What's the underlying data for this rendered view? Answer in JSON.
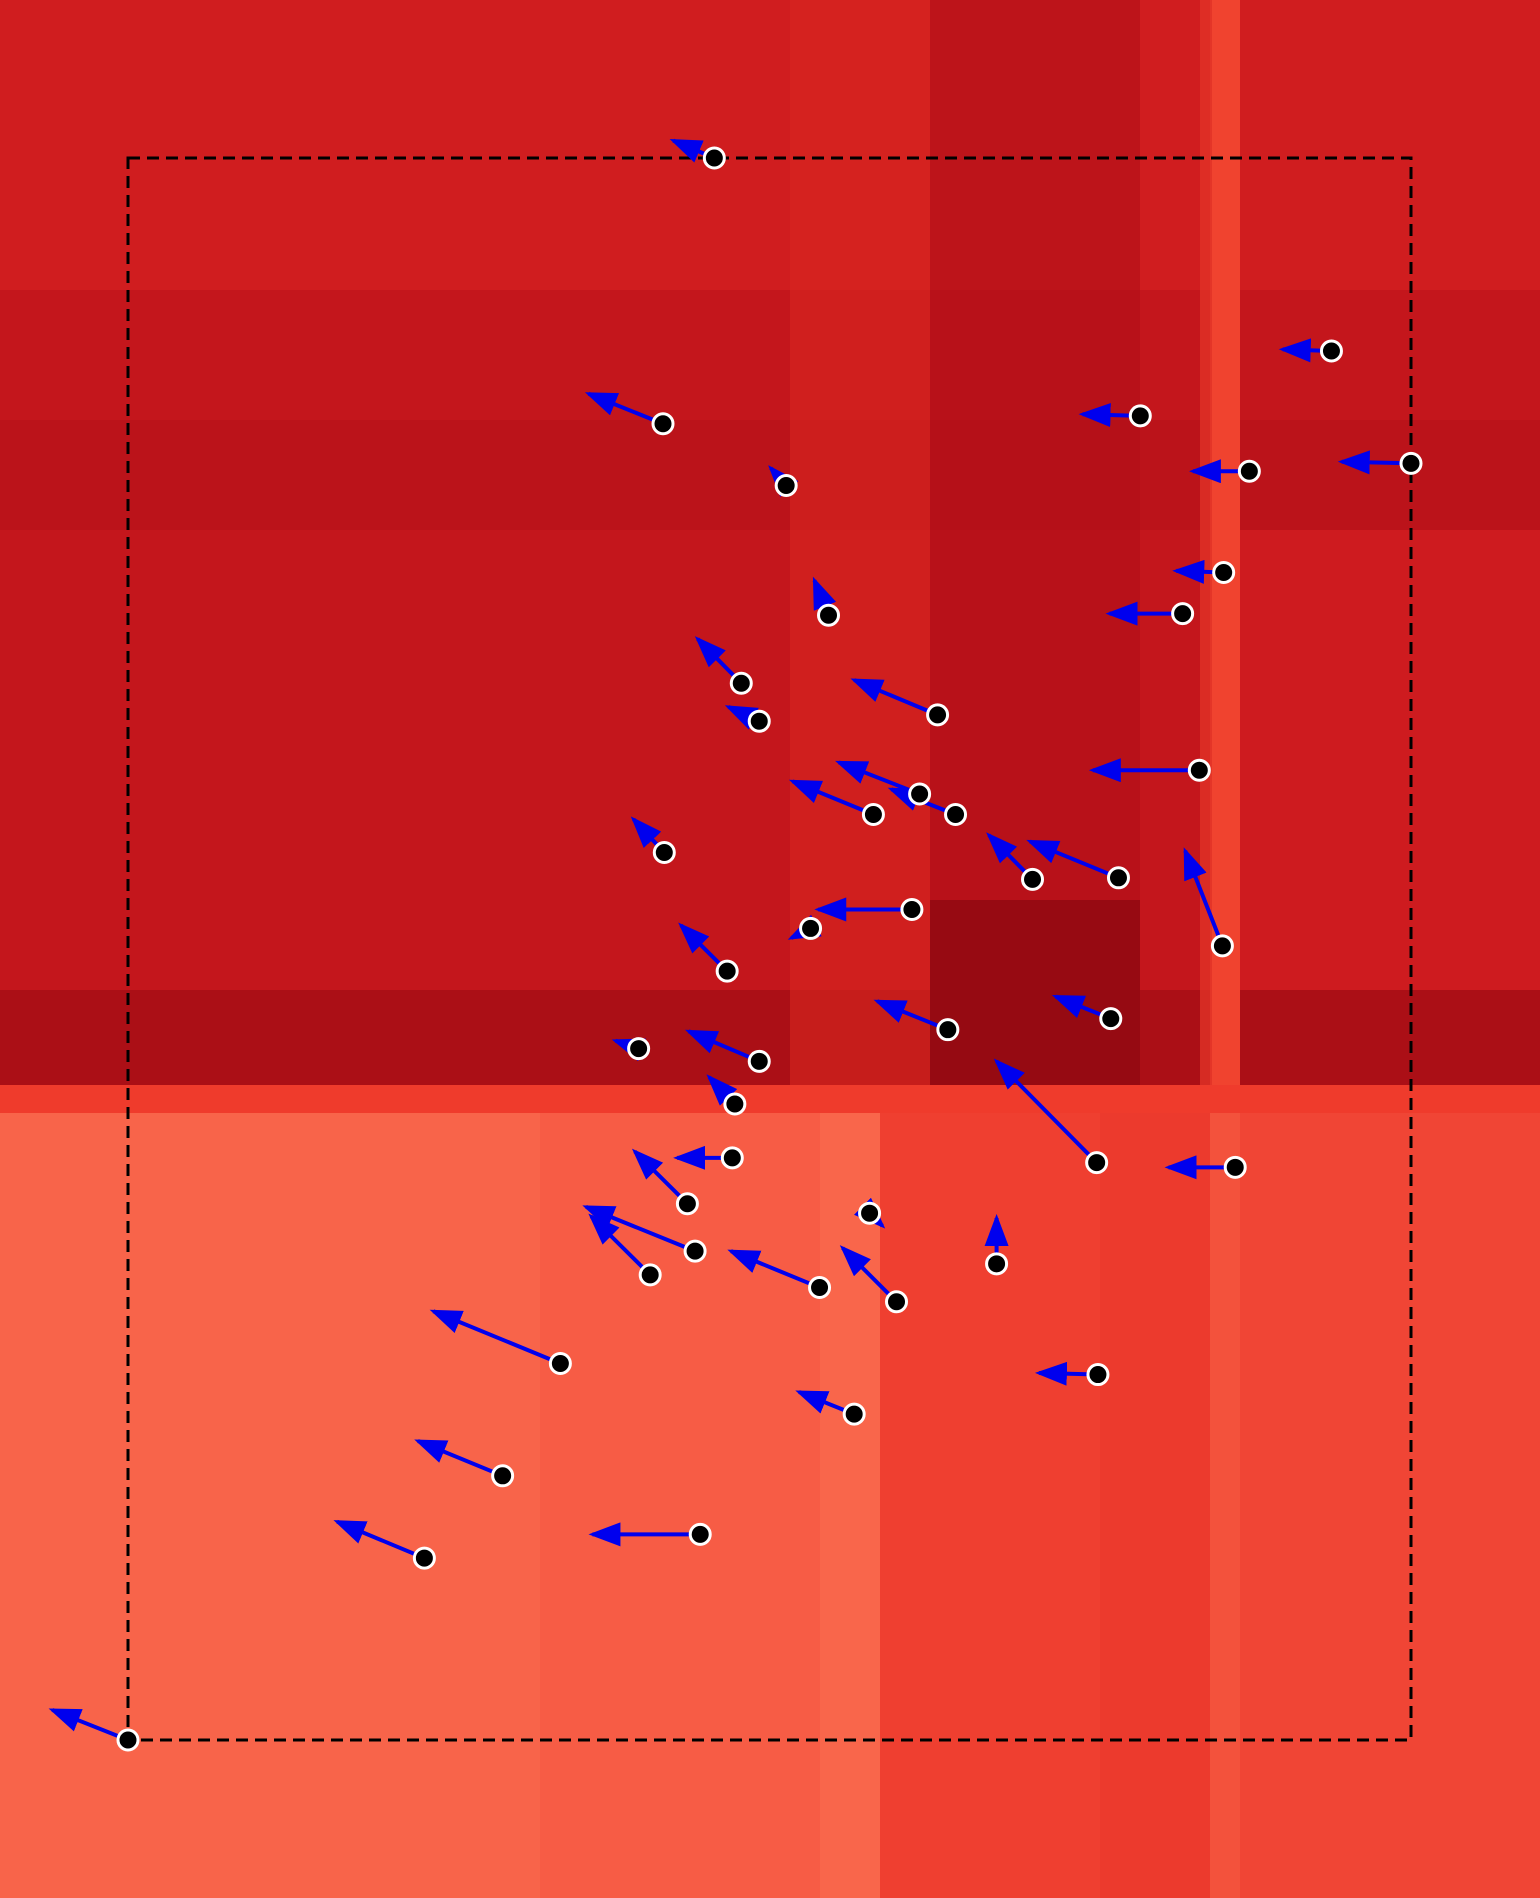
{
  "figure": {
    "colors": {
      "top_base": "#c4161c",
      "bottom_base": "#f8644a",
      "arrow": "#0000ee",
      "node_fill": "#000000",
      "node_stroke": "#ffffff",
      "frame": "#000000"
    },
    "frame_style": "dashed"
  },
  "chart_data": {
    "type": "quiver",
    "xlim": [
      0,
      1
    ],
    "ylim": [
      0,
      1
    ],
    "arrows": [
      {
        "x": 0.457,
        "y": 1.0,
        "u": -0.032,
        "v": 0.011
      },
      {
        "x": 0.938,
        "y": 0.878,
        "u": -0.038,
        "v": 0.001
      },
      {
        "x": 0.789,
        "y": 0.837,
        "u": -0.045,
        "v": 0.001
      },
      {
        "x": 0.417,
        "y": 0.832,
        "u": -0.058,
        "v": 0.019
      },
      {
        "x": 1.0,
        "y": 0.807,
        "u": -0.054,
        "v": 0.001
      },
      {
        "x": 0.874,
        "y": 0.802,
        "u": -0.044,
        "v": 0.0
      },
      {
        "x": 0.513,
        "y": 0.793,
        "u": -0.012,
        "v": 0.011
      },
      {
        "x": 0.854,
        "y": 0.738,
        "u": -0.037,
        "v": 0.001
      },
      {
        "x": 0.822,
        "y": 0.712,
        "u": -0.057,
        "v": 0.0
      },
      {
        "x": 0.546,
        "y": 0.711,
        "u": -0.011,
        "v": 0.022
      },
      {
        "x": 0.478,
        "y": 0.668,
        "u": -0.034,
        "v": 0.028
      },
      {
        "x": 0.631,
        "y": 0.648,
        "u": -0.065,
        "v": 0.022
      },
      {
        "x": 0.492,
        "y": 0.644,
        "u": -0.024,
        "v": 0.009
      },
      {
        "x": 0.835,
        "y": 0.613,
        "u": -0.083,
        "v": 0.0
      },
      {
        "x": 0.617,
        "y": 0.598,
        "u": -0.063,
        "v": 0.02
      },
      {
        "x": 0.645,
        "y": 0.585,
        "u": -0.05,
        "v": 0.016
      },
      {
        "x": 0.581,
        "y": 0.585,
        "u": -0.063,
        "v": 0.021
      },
      {
        "x": 0.418,
        "y": 0.561,
        "u": -0.024,
        "v": 0.021
      },
      {
        "x": 0.705,
        "y": 0.544,
        "u": -0.034,
        "v": 0.028
      },
      {
        "x": 0.772,
        "y": 0.545,
        "u": -0.069,
        "v": 0.023
      },
      {
        "x": 0.853,
        "y": 0.502,
        "u": -0.029,
        "v": 0.06
      },
      {
        "x": 0.611,
        "y": 0.525,
        "u": -0.073,
        "v": 0.0
      },
      {
        "x": 0.532,
        "y": 0.513,
        "u": -0.015,
        "v": -0.006
      },
      {
        "x": 0.467,
        "y": 0.486,
        "u": -0.036,
        "v": 0.029
      },
      {
        "x": 0.766,
        "y": 0.456,
        "u": -0.043,
        "v": 0.014
      },
      {
        "x": 0.639,
        "y": 0.449,
        "u": -0.055,
        "v": 0.018
      },
      {
        "x": 0.398,
        "y": 0.437,
        "u": -0.018,
        "v": 0.005
      },
      {
        "x": 0.492,
        "y": 0.429,
        "u": -0.055,
        "v": 0.019
      },
      {
        "x": 0.473,
        "y": 0.402,
        "u": -0.02,
        "v": 0.017
      },
      {
        "x": 0.755,
        "y": 0.365,
        "u": -0.078,
        "v": 0.064
      },
      {
        "x": 0.863,
        "y": 0.362,
        "u": -0.052,
        "v": 0.0
      },
      {
        "x": 0.471,
        "y": 0.368,
        "u": -0.043,
        "v": 0.0
      },
      {
        "x": 0.436,
        "y": 0.339,
        "u": -0.041,
        "v": 0.033
      },
      {
        "x": 0.578,
        "y": 0.333,
        "u": 0.01,
        "v": -0.008
      },
      {
        "x": 0.442,
        "y": 0.309,
        "u": -0.085,
        "v": 0.028
      },
      {
        "x": 0.407,
        "y": 0.294,
        "u": -0.046,
        "v": 0.037
      },
      {
        "x": 0.677,
        "y": 0.301,
        "u": 0.0,
        "v": 0.029
      },
      {
        "x": 0.539,
        "y": 0.286,
        "u": -0.069,
        "v": 0.023
      },
      {
        "x": 0.599,
        "y": 0.277,
        "u": -0.042,
        "v": 0.034
      },
      {
        "x": 0.337,
        "y": 0.238,
        "u": -0.099,
        "v": 0.033
      },
      {
        "x": 0.756,
        "y": 0.231,
        "u": -0.046,
        "v": 0.001
      },
      {
        "x": 0.566,
        "y": 0.206,
        "u": -0.043,
        "v": 0.014
      },
      {
        "x": 0.292,
        "y": 0.167,
        "u": -0.066,
        "v": 0.022
      },
      {
        "x": 0.446,
        "y": 0.13,
        "u": -0.084,
        "v": 0.0
      },
      {
        "x": 0.231,
        "y": 0.115,
        "u": -0.068,
        "v": 0.023
      },
      {
        "x": 0.0,
        "y": 0.0,
        "u": -0.059,
        "v": 0.019
      }
    ]
  }
}
